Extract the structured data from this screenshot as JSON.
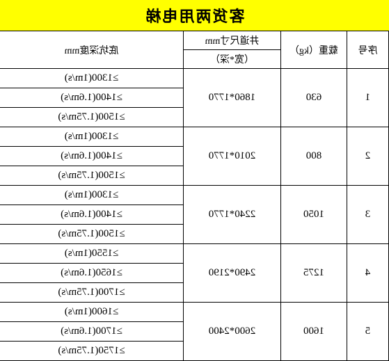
{
  "title": "客货两用电梯",
  "headers": {
    "seq": "序号",
    "load": "载重（kg）",
    "shaft_top": "井道尺寸mm",
    "shaft_sub": "（宽*深）",
    "pit": "底坑深度mm"
  },
  "rows": [
    {
      "seq": "1",
      "load": "630",
      "shaft": "1860*1770",
      "pits": [
        "≥1300(1m/s)",
        "≥1400(1.6m/s)",
        "≥1500(1.75m/s)"
      ]
    },
    {
      "seq": "2",
      "load": "800",
      "shaft": "2010*1770",
      "pits": [
        "≥1300(1m/s)",
        "≥1400(1.6m/s)",
        "≥1500(1.75m/s)"
      ]
    },
    {
      "seq": "3",
      "load": "1050",
      "shaft": "2240*1770",
      "pits": [
        "≥1300(1m/s)",
        "≥1400(1.6m/s)",
        "≥1500(1.75m/s)"
      ]
    },
    {
      "seq": "4",
      "load": "1275",
      "shaft": "2490*2190",
      "pits": [
        "≥1550(1m/s)",
        "≥1650(1.6m/s)",
        "≥1700(1.75m/s)"
      ]
    },
    {
      "seq": "5",
      "load": "1600",
      "shaft": "2600*2400",
      "pits": [
        "≥1600(1m/s)",
        "≥1700(1.6m/s)",
        "≥1750(1.75m/s)"
      ]
    }
  ],
  "colors": {
    "title_bg": "#ffff00",
    "border": "#000000",
    "bg": "#ffffff"
  },
  "typography": {
    "title_fontsize": 22,
    "cell_fontsize": 15,
    "font_family": "SimSun"
  }
}
